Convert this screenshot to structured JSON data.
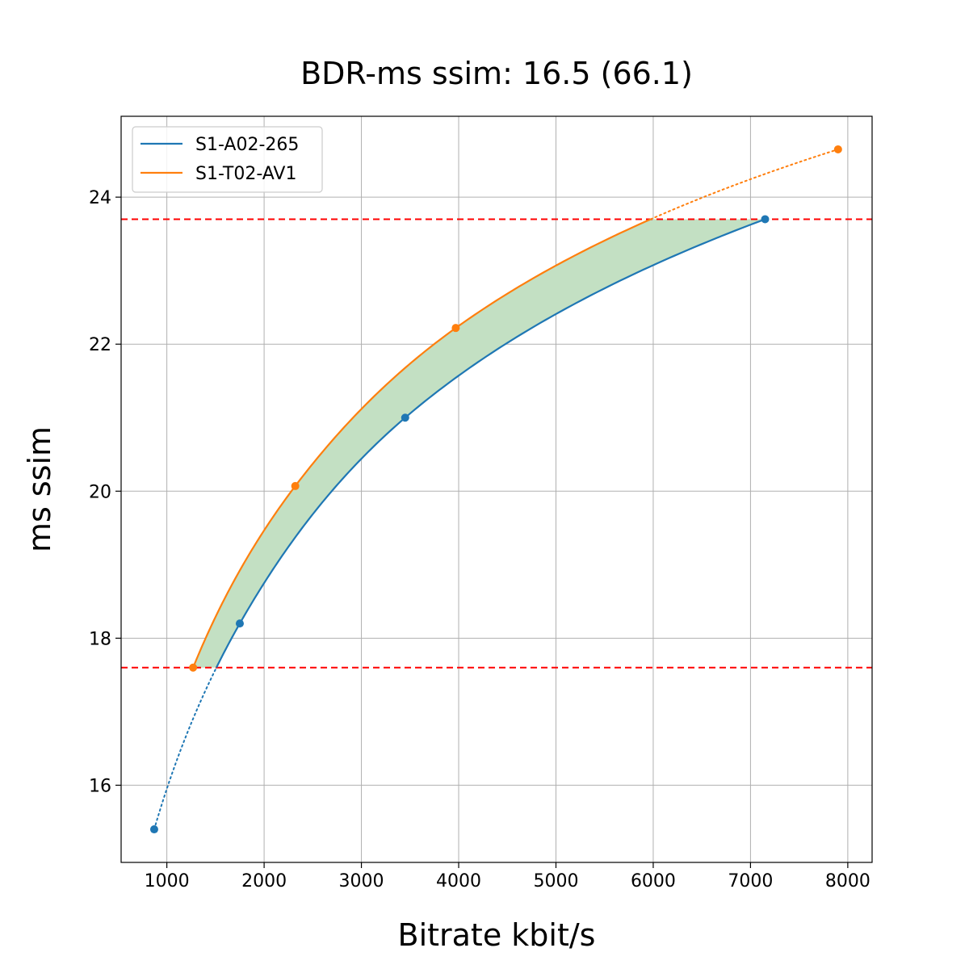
{
  "chart_data": {
    "type": "line",
    "title": "BDR-ms ssim: 16.5 (66.1)",
    "xlabel": "Bitrate kbit/s",
    "ylabel": "ms ssim",
    "xlim": [
      530,
      8250
    ],
    "ylim": [
      14.95,
      25.1
    ],
    "xticks": [
      "1000",
      "2000",
      "3000",
      "4000",
      "5000",
      "6000",
      "7000",
      "8000"
    ],
    "yticks": [
      "16",
      "18",
      "20",
      "22",
      "24"
    ],
    "grid": true,
    "legend_position": "top-left",
    "hlines": [
      17.6,
      23.7
    ],
    "hline_color": "#ff0000",
    "fill_color": "#c3e0c3",
    "series": [
      {
        "name": "S1-A02-265",
        "color": "#1f77b4",
        "points": [
          [
            870,
            15.4
          ],
          [
            1750,
            18.2
          ],
          [
            3450,
            21.0
          ],
          [
            7150,
            23.7
          ]
        ]
      },
      {
        "name": "S1-T02-AV1",
        "color": "#ff7f0e",
        "points": [
          [
            1270,
            17.6
          ],
          [
            2320,
            20.07
          ],
          [
            3970,
            22.22
          ],
          [
            7900,
            24.65
          ]
        ]
      }
    ]
  }
}
